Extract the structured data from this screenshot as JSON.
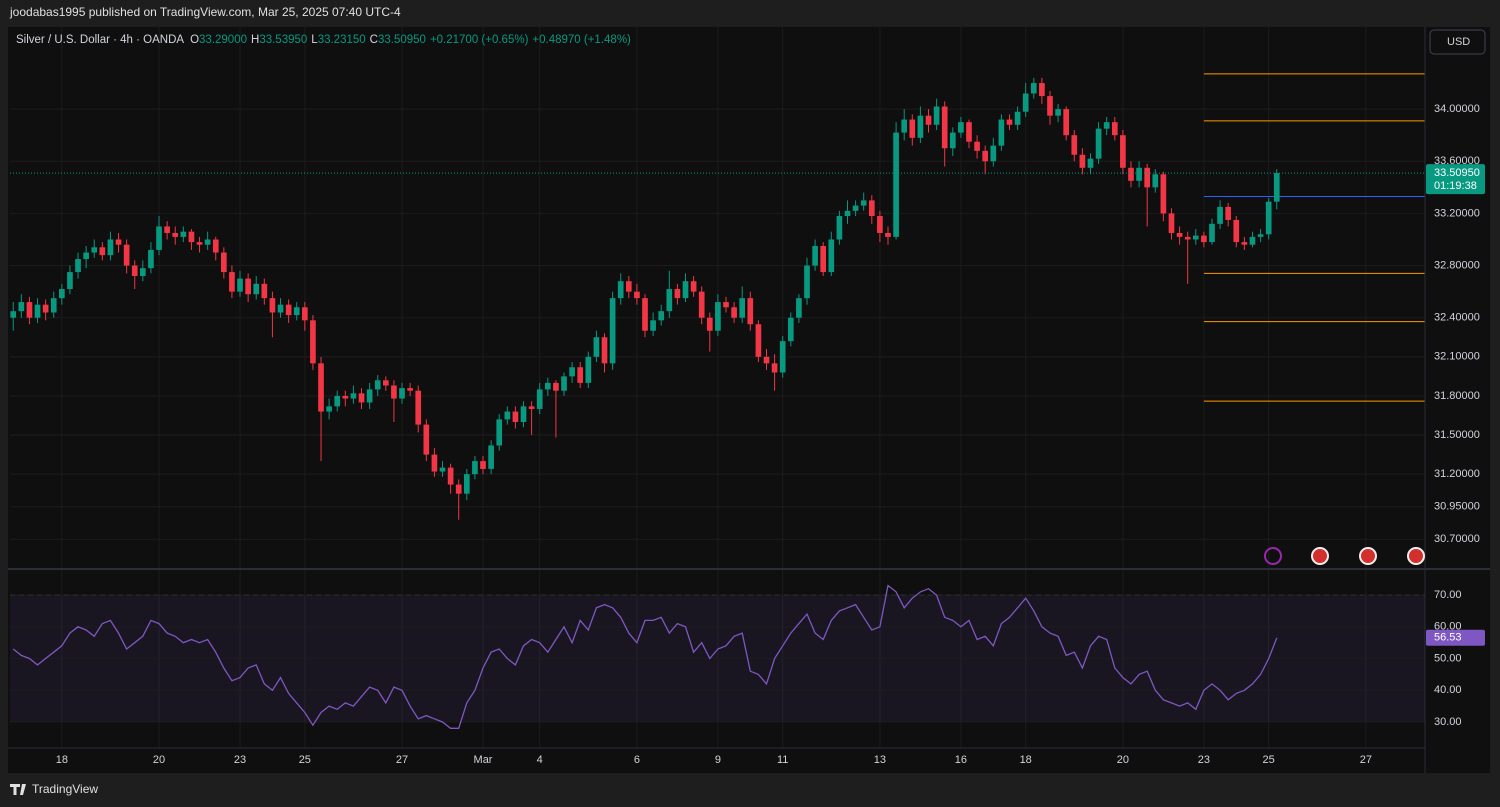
{
  "header": {
    "publisher": "joodabas1995 published on TradingView.com, Mar 25, 2025 07:40 UTC-4"
  },
  "footer": {
    "brand": "TradingView"
  },
  "chart_data": [
    {
      "type": "candlestick",
      "title": "Silver / U.S. Dollar · 4h · OANDA",
      "ohlc_legend": [
        {
          "label": "O",
          "value": "33.29000"
        },
        {
          "label": "H",
          "value": "33.53950"
        },
        {
          "label": "L",
          "value": "33.23150"
        },
        {
          "label": "C",
          "value": "33.50950"
        }
      ],
      "change": "+0.21700 (+0.65%)",
      "change_2": "+0.48970 (+1.48%)",
      "currency": "USD",
      "countdown": "01:19:38",
      "colors": {
        "up": "#089981",
        "down": "#f23645"
      },
      "xlim": [
        -0.4,
        174.3
      ],
      "xticks": [
        {
          "value": 6,
          "label": "18"
        },
        {
          "value": 18,
          "label": "20"
        },
        {
          "value": 28,
          "label": "23"
        },
        {
          "value": 36,
          "label": "25"
        },
        {
          "value": 48,
          "label": "27"
        },
        {
          "value": 58,
          "label": "Mar"
        },
        {
          "value": 65,
          "label": "4"
        },
        {
          "value": 77,
          "label": "6"
        },
        {
          "value": 87,
          "label": "9"
        },
        {
          "value": 95,
          "label": "11"
        },
        {
          "value": 107,
          "label": "13"
        },
        {
          "value": 117,
          "label": "16"
        },
        {
          "value": 125,
          "label": "18"
        },
        {
          "value": 137,
          "label": "20"
        },
        {
          "value": 147,
          "label": "23"
        },
        {
          "value": 155,
          "label": "25"
        },
        {
          "value": 167,
          "label": "27"
        }
      ],
      "ylim": [
        30.48,
        34.63
      ],
      "yticks": [
        {
          "value": 34,
          "label": "34.00000"
        },
        {
          "value": 33.6,
          "label": "33.60000"
        },
        {
          "value": 33.2,
          "label": "33.20000"
        },
        {
          "value": 32.8,
          "label": "32.80000"
        },
        {
          "value": 32.4,
          "label": "32.40000"
        },
        {
          "value": 32.1,
          "label": "32.10000"
        },
        {
          "value": 31.8,
          "label": "31.80000"
        },
        {
          "value": 31.5,
          "label": "31.50000"
        },
        {
          "value": 31.2,
          "label": "31.20000"
        },
        {
          "value": 30.95,
          "label": "30.95000"
        },
        {
          "value": 30.7,
          "label": "30.70000"
        }
      ],
      "grid": true,
      "levels": [
        {
          "value": 34.27,
          "color": "#ff9800",
          "from": 147
        },
        {
          "value": 33.91,
          "color": "#ff9800",
          "from": 147
        },
        {
          "value": 33.33,
          "color": "#2962ff",
          "from": 147
        },
        {
          "value": 32.74,
          "color": "#ff9800",
          "from": 147
        },
        {
          "value": 32.37,
          "color": "#ff9800",
          "from": 147
        },
        {
          "value": 31.76,
          "color": "#ff9800",
          "from": 147
        }
      ],
      "candles": [
        [
          32.4,
          32.52,
          32.3,
          32.45
        ],
        [
          32.45,
          32.58,
          32.4,
          32.52
        ],
        [
          32.52,
          32.56,
          32.35,
          32.4
        ],
        [
          32.4,
          32.55,
          32.36,
          32.5
        ],
        [
          32.5,
          32.54,
          32.38,
          32.44
        ],
        [
          32.44,
          32.6,
          32.4,
          32.55
        ],
        [
          32.55,
          32.66,
          32.5,
          32.62
        ],
        [
          32.62,
          32.8,
          32.58,
          32.75
        ],
        [
          32.75,
          32.9,
          32.7,
          32.85
        ],
        [
          32.85,
          32.95,
          32.78,
          32.9
        ],
        [
          32.9,
          33.0,
          32.86,
          32.94
        ],
        [
          32.94,
          32.98,
          32.84,
          32.88
        ],
        [
          32.88,
          33.06,
          32.84,
          33.0
        ],
        [
          33.0,
          33.05,
          32.9,
          32.96
        ],
        [
          32.96,
          33.0,
          32.74,
          32.8
        ],
        [
          32.8,
          32.84,
          32.62,
          32.72
        ],
        [
          32.72,
          32.84,
          32.68,
          32.78
        ],
        [
          32.78,
          32.98,
          32.74,
          32.92
        ],
        [
          32.92,
          33.18,
          32.88,
          33.1
        ],
        [
          33.1,
          33.14,
          33.0,
          33.05
        ],
        [
          33.05,
          33.1,
          32.96,
          33.02
        ],
        [
          33.02,
          33.1,
          32.98,
          33.06
        ],
        [
          33.06,
          33.08,
          32.92,
          32.98
        ],
        [
          32.98,
          33.02,
          32.9,
          32.96
        ],
        [
          32.96,
          33.06,
          32.92,
          33.0
        ],
        [
          33.0,
          33.02,
          32.84,
          32.9
        ],
        [
          32.9,
          32.94,
          32.7,
          32.75
        ],
        [
          32.75,
          32.8,
          32.55,
          32.6
        ],
        [
          32.6,
          32.76,
          32.56,
          32.7
        ],
        [
          32.7,
          32.74,
          32.52,
          32.58
        ],
        [
          32.58,
          32.72,
          32.54,
          32.66
        ],
        [
          32.66,
          32.7,
          32.5,
          32.55
        ],
        [
          32.55,
          32.6,
          32.25,
          32.44
        ],
        [
          32.44,
          32.55,
          32.4,
          32.5
        ],
        [
          32.5,
          32.54,
          32.36,
          32.42
        ],
        [
          32.42,
          32.52,
          32.38,
          32.48
        ],
        [
          32.48,
          32.52,
          32.3,
          32.38
        ],
        [
          32.38,
          32.42,
          32.0,
          32.05
        ],
        [
          32.05,
          32.1,
          31.3,
          31.68
        ],
        [
          31.68,
          31.78,
          31.62,
          31.72
        ],
        [
          31.72,
          31.84,
          31.68,
          31.8
        ],
        [
          31.8,
          31.84,
          31.72,
          31.78
        ],
        [
          31.78,
          31.88,
          31.74,
          31.82
        ],
        [
          31.82,
          31.86,
          31.7,
          31.75
        ],
        [
          31.75,
          31.9,
          31.7,
          31.85
        ],
        [
          31.85,
          31.96,
          31.8,
          31.92
        ],
        [
          31.92,
          31.95,
          31.84,
          31.88
        ],
        [
          31.88,
          31.92,
          31.6,
          31.78
        ],
        [
          31.78,
          31.9,
          31.74,
          31.86
        ],
        [
          31.86,
          31.9,
          31.8,
          31.84
        ],
        [
          31.84,
          31.88,
          31.52,
          31.58
        ],
        [
          31.58,
          31.62,
          31.3,
          31.35
        ],
        [
          31.35,
          31.4,
          31.18,
          31.22
        ],
        [
          31.22,
          31.3,
          31.18,
          31.25
        ],
        [
          31.25,
          31.28,
          31.05,
          31.12
        ],
        [
          31.12,
          31.16,
          30.85,
          31.05
        ],
        [
          31.05,
          31.24,
          31.0,
          31.2
        ],
        [
          31.2,
          31.34,
          31.16,
          31.3
        ],
        [
          31.3,
          31.34,
          31.2,
          31.24
        ],
        [
          31.24,
          31.46,
          31.2,
          31.42
        ],
        [
          31.42,
          31.66,
          31.38,
          31.62
        ],
        [
          31.62,
          31.72,
          31.58,
          31.68
        ],
        [
          31.68,
          31.72,
          31.55,
          31.6
        ],
        [
          31.6,
          31.76,
          31.56,
          31.72
        ],
        [
          31.72,
          31.76,
          31.5,
          31.7
        ],
        [
          31.7,
          31.9,
          31.66,
          31.85
        ],
        [
          31.85,
          31.94,
          31.8,
          31.9
        ],
        [
          31.9,
          31.92,
          31.48,
          31.84
        ],
        [
          31.84,
          31.98,
          31.8,
          31.95
        ],
        [
          31.95,
          32.06,
          31.9,
          32.02
        ],
        [
          32.02,
          32.06,
          31.86,
          31.9
        ],
        [
          31.9,
          32.14,
          31.86,
          32.1
        ],
        [
          32.1,
          32.3,
          32.06,
          32.25
        ],
        [
          32.25,
          32.28,
          31.98,
          32.05
        ],
        [
          32.05,
          32.6,
          32.0,
          32.55
        ],
        [
          32.55,
          32.74,
          32.5,
          32.68
        ],
        [
          32.68,
          32.72,
          32.55,
          32.6
        ],
        [
          32.6,
          32.66,
          32.5,
          32.55
        ],
        [
          32.55,
          32.58,
          32.25,
          32.3
        ],
        [
          32.3,
          32.44,
          32.26,
          32.38
        ],
        [
          32.38,
          32.5,
          32.34,
          32.45
        ],
        [
          32.45,
          32.76,
          32.4,
          32.62
        ],
        [
          32.62,
          32.66,
          32.5,
          32.55
        ],
        [
          32.55,
          32.74,
          32.52,
          32.68
        ],
        [
          32.68,
          32.72,
          32.56,
          32.6
        ],
        [
          32.6,
          32.64,
          32.35,
          32.4
        ],
        [
          32.4,
          32.44,
          32.14,
          32.3
        ],
        [
          32.3,
          32.58,
          32.26,
          32.52
        ],
        [
          32.52,
          32.56,
          32.44,
          32.48
        ],
        [
          32.48,
          32.52,
          32.36,
          32.4
        ],
        [
          32.4,
          32.64,
          32.36,
          32.55
        ],
        [
          32.55,
          32.6,
          32.3,
          32.35
        ],
        [
          32.35,
          32.38,
          32.06,
          32.1
        ],
        [
          32.1,
          32.16,
          32.0,
          32.05
        ],
        [
          32.05,
          32.12,
          31.84,
          31.98
        ],
        [
          31.98,
          32.26,
          31.94,
          32.22
        ],
        [
          32.22,
          32.44,
          32.18,
          32.4
        ],
        [
          32.4,
          32.58,
          32.36,
          32.55
        ],
        [
          32.55,
          32.86,
          32.5,
          32.8
        ],
        [
          32.8,
          33.0,
          32.76,
          32.95
        ],
        [
          32.95,
          32.98,
          32.72,
          32.75
        ],
        [
          32.75,
          33.06,
          32.72,
          33.0
        ],
        [
          33.0,
          33.22,
          32.96,
          33.18
        ],
        [
          33.18,
          33.3,
          33.12,
          33.22
        ],
        [
          33.22,
          33.3,
          33.18,
          33.26
        ],
        [
          33.26,
          33.36,
          33.22,
          33.3
        ],
        [
          33.3,
          33.34,
          33.12,
          33.18
        ],
        [
          33.18,
          33.22,
          32.98,
          33.05
        ],
        [
          33.05,
          33.1,
          32.96,
          33.02
        ],
        [
          33.02,
          33.9,
          33.0,
          33.82
        ],
        [
          33.82,
          34.0,
          33.76,
          33.92
        ],
        [
          33.92,
          33.96,
          33.72,
          33.78
        ],
        [
          33.78,
          34.02,
          33.74,
          33.95
        ],
        [
          33.95,
          34.0,
          33.82,
          33.88
        ],
        [
          33.88,
          34.08,
          33.84,
          34.02
        ],
        [
          34.02,
          34.06,
          33.56,
          33.7
        ],
        [
          33.7,
          33.86,
          33.64,
          33.82
        ],
        [
          33.82,
          33.94,
          33.78,
          33.9
        ],
        [
          33.9,
          33.92,
          33.7,
          33.75
        ],
        [
          33.75,
          33.8,
          33.62,
          33.68
        ],
        [
          33.68,
          33.72,
          33.5,
          33.6
        ],
        [
          33.6,
          33.78,
          33.56,
          33.72
        ],
        [
          33.72,
          33.96,
          33.68,
          33.92
        ],
        [
          33.92,
          33.96,
          33.84,
          33.88
        ],
        [
          33.88,
          34.02,
          33.84,
          33.98
        ],
        [
          33.98,
          34.2,
          33.94,
          34.12
        ],
        [
          34.12,
          34.24,
          34.08,
          34.2
        ],
        [
          34.2,
          34.24,
          34.04,
          34.1
        ],
        [
          34.1,
          34.14,
          33.88,
          33.95
        ],
        [
          33.95,
          34.04,
          33.9,
          34.0
        ],
        [
          34.0,
          34.02,
          33.76,
          33.8
        ],
        [
          33.8,
          33.84,
          33.6,
          33.65
        ],
        [
          33.65,
          33.7,
          33.5,
          33.55
        ],
        [
          33.55,
          33.66,
          33.5,
          33.62
        ],
        [
          33.62,
          33.9,
          33.58,
          33.85
        ],
        [
          33.85,
          33.94,
          33.8,
          33.9
        ],
        [
          33.9,
          33.94,
          33.76,
          33.8
        ],
        [
          33.8,
          33.84,
          33.5,
          33.55
        ],
        [
          33.55,
          33.6,
          33.4,
          33.45
        ],
        [
          33.45,
          33.6,
          33.4,
          33.55
        ],
        [
          33.55,
          33.58,
          33.1,
          33.4
        ],
        [
          33.4,
          33.54,
          33.36,
          33.5
        ],
        [
          33.5,
          33.52,
          33.14,
          33.2
        ],
        [
          33.2,
          33.24,
          33.0,
          33.05
        ],
        [
          33.05,
          33.1,
          32.96,
          33.02
        ],
        [
          33.02,
          33.06,
          32.66,
          33.0
        ],
        [
          33.0,
          33.08,
          32.96,
          33.03
        ],
        [
          33.03,
          33.06,
          32.94,
          32.98
        ],
        [
          32.98,
          33.16,
          32.96,
          33.12
        ],
        [
          33.12,
          33.3,
          33.08,
          33.25
        ],
        [
          33.25,
          33.28,
          33.1,
          33.15
        ],
        [
          33.15,
          33.18,
          32.94,
          32.98
        ],
        [
          32.98,
          33.02,
          32.92,
          32.96
        ],
        [
          32.96,
          33.06,
          32.94,
          33.02
        ],
        [
          33.02,
          33.08,
          32.98,
          33.04
        ],
        [
          33.04,
          33.32,
          33.0,
          33.29
        ],
        [
          33.29,
          33.5395,
          33.2315,
          33.5095
        ]
      ]
    },
    {
      "type": "line",
      "color": "#7e57c2",
      "ylim": [
        21.8,
        77.9
      ],
      "yticks": [
        {
          "value": 70,
          "label": "70.00"
        },
        {
          "value": 60,
          "label": "60.00"
        },
        {
          "value": 50,
          "label": "50.00"
        },
        {
          "value": 40,
          "label": "40.00"
        },
        {
          "value": 30,
          "label": "30.00"
        }
      ],
      "band": [
        30,
        70
      ],
      "dashed": [
        30,
        50,
        70
      ],
      "values": [
        53,
        51,
        50,
        48,
        50,
        52,
        54,
        58,
        60,
        59,
        57,
        61,
        62,
        58,
        53,
        55,
        57,
        62,
        61,
        58,
        57,
        55,
        56,
        55,
        56,
        52,
        47,
        43,
        44,
        47,
        48,
        42,
        40,
        44,
        39,
        36,
        33,
        29,
        33,
        35,
        34,
        36,
        35,
        38,
        41,
        40,
        36,
        41,
        40,
        35,
        31,
        32,
        31,
        30,
        28,
        28,
        36,
        40,
        47,
        52,
        53,
        50,
        48,
        54,
        56,
        55,
        52,
        56,
        60,
        55,
        62,
        59,
        66,
        67,
        66,
        63,
        58,
        55,
        62,
        62,
        63,
        58,
        61,
        60,
        52,
        55,
        50,
        53,
        54,
        57,
        58,
        46,
        45,
        42,
        50,
        54,
        58,
        61,
        64,
        58,
        56,
        62,
        65,
        66,
        67,
        63,
        59,
        60,
        73,
        71,
        66,
        69,
        71,
        72,
        70,
        63,
        62,
        60,
        62,
        56,
        57,
        54,
        61,
        63,
        66,
        69,
        65,
        60,
        58,
        57,
        51,
        52,
        47,
        54,
        57,
        56,
        47,
        44,
        42,
        45,
        46,
        40,
        37,
        36,
        35,
        36,
        34,
        40,
        42,
        40,
        37,
        39,
        40,
        42,
        45,
        50,
        56.53
      ]
    }
  ]
}
